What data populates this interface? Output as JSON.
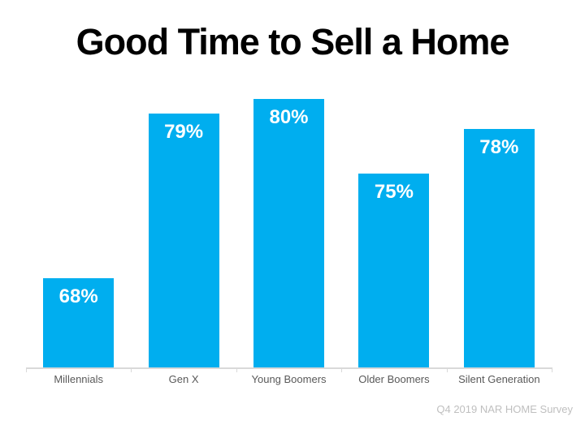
{
  "title": "Good Time to Sell a Home",
  "attribution": "Q4 2019 NAR HOME Survey",
  "colors": {
    "bar": "#00AEEF",
    "bar_value_label": "#FFFFFF",
    "title": "#000000",
    "category_label": "#595959",
    "axis": "#D9D9D9",
    "attribution": "#BFBFBF",
    "background": "#FFFFFF"
  },
  "chart_data": {
    "type": "bar",
    "title": "Good Time to Sell a Home",
    "categories": [
      "Millennials",
      "Gen X",
      "Young Boomers",
      "Older Boomers",
      "Silent Generation"
    ],
    "values": [
      68,
      79,
      80,
      75,
      78
    ],
    "value_labels": [
      "68%",
      "79%",
      "80%",
      "75%",
      "78%"
    ],
    "value_label_position": "inside-top",
    "xlabel": "",
    "ylabel": "",
    "ylim": [
      62,
      82
    ],
    "grid": false,
    "legend": "none",
    "y_axis_visible": false,
    "source": "Q4 2019 NAR HOME Survey"
  }
}
